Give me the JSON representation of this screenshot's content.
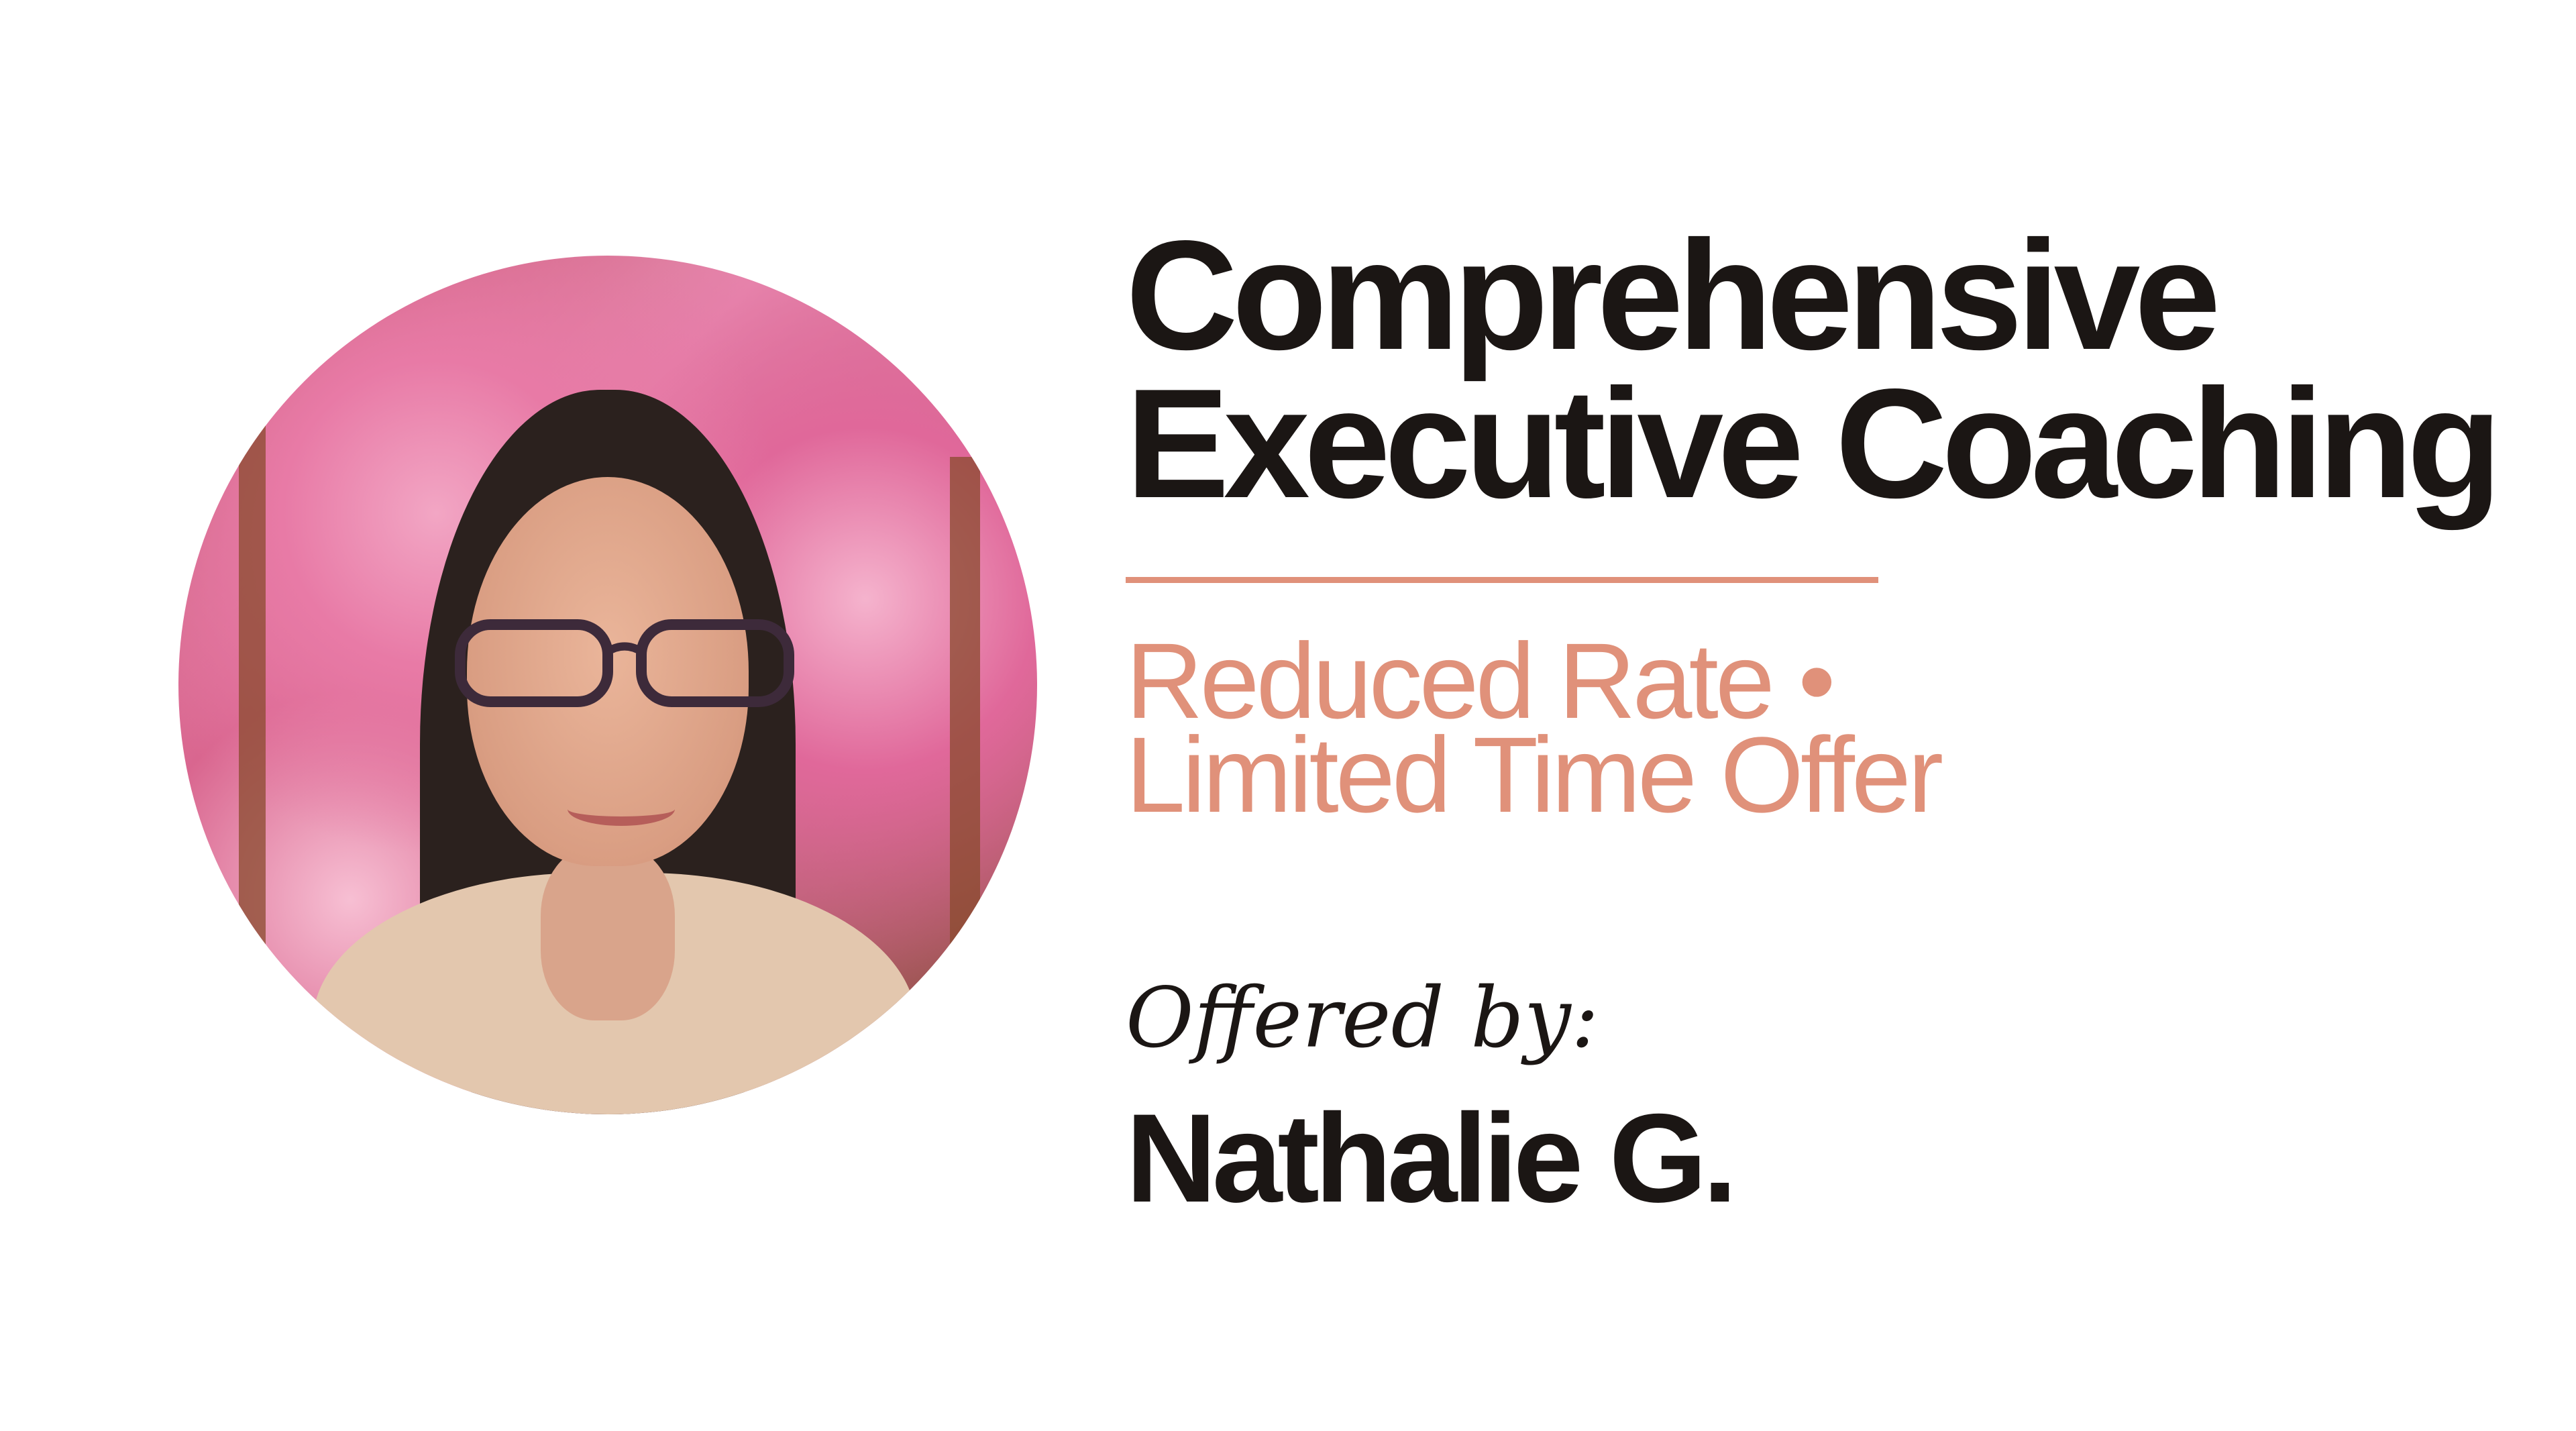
{
  "colors": {
    "accent": "#e0917a",
    "text": "#1b1614",
    "background": "#ffffff"
  },
  "photo": {
    "subject": "portrait-photo"
  },
  "title": {
    "line1": "Comprehensive",
    "line2": "Executive Coaching"
  },
  "subtitle": {
    "line1": "Reduced Rate •",
    "line2": "Limited Time Offer"
  },
  "offered_by_label": "Offered by:",
  "presenter_name": "Nathalie G."
}
